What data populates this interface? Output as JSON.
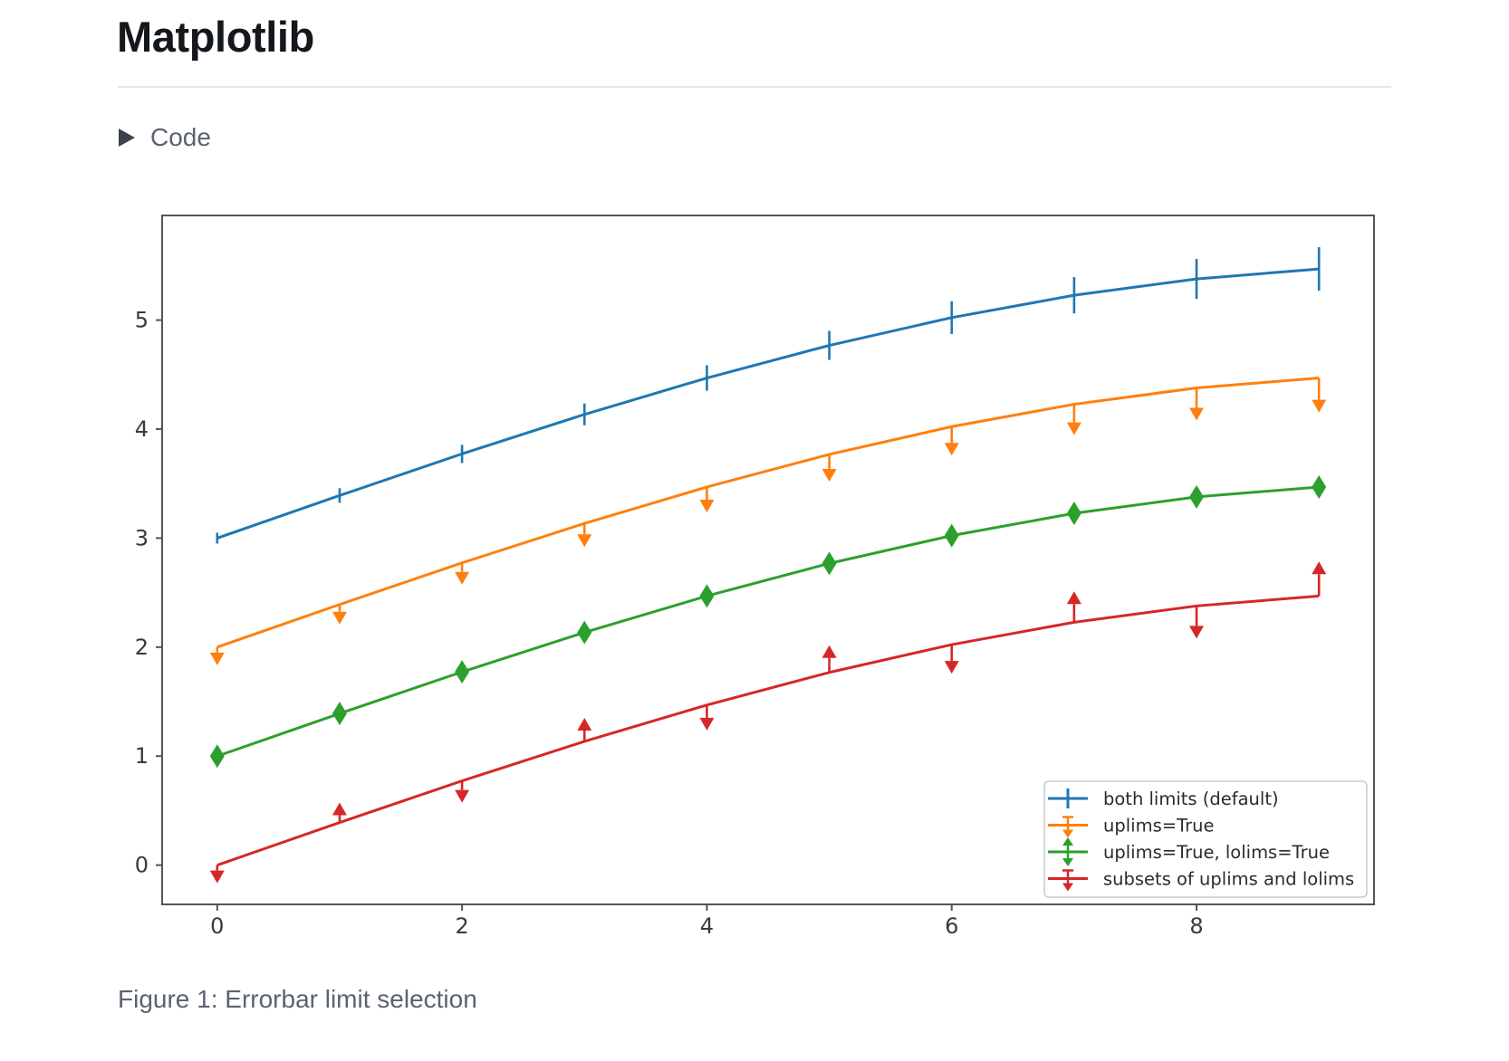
{
  "page": {
    "title": "Matplotlib",
    "code_toggle": {
      "label": "Code",
      "icon": "disclosure-triangle"
    },
    "caption": "Figure 1: Errorbar limit selection"
  },
  "chart_data": {
    "type": "line",
    "title": "",
    "xlabel": "",
    "ylabel": "",
    "x": [
      0,
      1,
      2,
      3,
      4,
      5,
      6,
      7,
      8,
      9
    ],
    "yerr": [
      0.05,
      0.0667,
      0.0833,
      0.1,
      0.1167,
      0.1333,
      0.15,
      0.1667,
      0.1833,
      0.2
    ],
    "series": [
      {
        "name": "both limits (default)",
        "color": "#1f77b4",
        "limits": "none",
        "values": [
          3.0,
          3.391,
          3.773,
          4.135,
          4.469,
          4.768,
          5.023,
          5.228,
          5.378,
          5.469
        ]
      },
      {
        "name": "uplims=True",
        "color": "#ff7f0e",
        "limits": "uplims",
        "values": [
          2.0,
          2.391,
          2.773,
          3.135,
          3.469,
          3.768,
          4.023,
          4.228,
          4.378,
          4.469
        ]
      },
      {
        "name": "uplims=True, lolims=True",
        "color": "#2ca02c",
        "limits": "both",
        "values": [
          1.0,
          1.391,
          1.773,
          2.135,
          2.469,
          2.768,
          3.023,
          3.228,
          3.378,
          3.469
        ]
      },
      {
        "name": "subsets of uplims and lolims",
        "color": "#d62728",
        "limits": "alternating",
        "uplims": [
          true,
          false,
          true,
          false,
          true,
          false,
          true,
          false,
          true,
          false
        ],
        "lolims": [
          false,
          true,
          false,
          true,
          false,
          true,
          false,
          true,
          false,
          true
        ],
        "values": [
          0.0,
          0.391,
          0.773,
          1.135,
          1.469,
          1.768,
          2.023,
          2.228,
          2.378,
          2.469
        ]
      }
    ],
    "xticks": [
      "0",
      "2",
      "4",
      "6",
      "8"
    ],
    "yticks": [
      "0",
      "1",
      "2",
      "3",
      "4",
      "5"
    ],
    "xlim": [
      -0.45,
      9.45
    ],
    "ylim": [
      -0.36,
      5.96
    ],
    "grid": false,
    "legend": {
      "position": "lower right"
    },
    "axis_color": "#555555",
    "tick_label_color": "#3a3a3a",
    "legend_border_color": "#cccccc",
    "legend_text_color": "#2b2b2b",
    "background": "#ffffff"
  }
}
